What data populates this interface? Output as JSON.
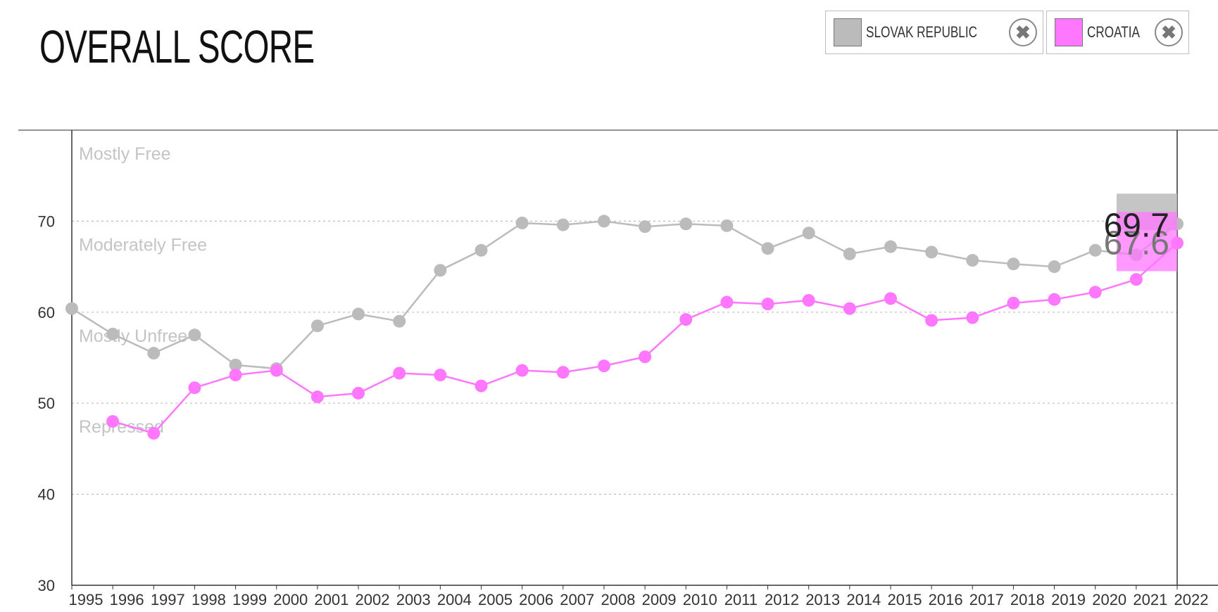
{
  "page": {
    "title": "OVERALL SCORE"
  },
  "legend": [
    {
      "label": "SLOVAK REPUBLIC",
      "color": "#bbbbbb",
      "swatch_icon": "square-swatch-icon",
      "close_icon": "close-icon",
      "close_glyph": "✖"
    },
    {
      "label": "CROATIA",
      "color": "#ff77ff",
      "swatch_icon": "square-swatch-icon",
      "close_icon": "close-icon",
      "close_glyph": "✖"
    }
  ],
  "chart_data": {
    "type": "line",
    "title": "OVERALL SCORE",
    "xlabel": "",
    "ylabel": "",
    "x": [
      1995,
      1996,
      1997,
      1998,
      1999,
      2000,
      2001,
      2002,
      2003,
      2004,
      2005,
      2006,
      2007,
      2008,
      2009,
      2010,
      2011,
      2012,
      2013,
      2014,
      2015,
      2016,
      2017,
      2018,
      2019,
      2020,
      2021,
      2022
    ],
    "x_tick_labels": [
      "1995",
      "1996",
      "1997",
      "1998",
      "1999",
      "2000",
      "2001",
      "2002",
      "2003",
      "2004",
      "2005",
      "2006",
      "2007",
      "2008",
      "2009",
      "2010",
      "2011",
      "2012",
      "2013",
      "2014",
      "2015",
      "2016",
      "2017",
      "2018",
      "2019",
      "2020",
      "2021",
      "2022"
    ],
    "y_ticks": [
      30,
      40,
      50,
      60,
      70
    ],
    "ylim": [
      30,
      80
    ],
    "grid": true,
    "legend_position": "top-right",
    "bands": [
      {
        "label": "Mostly Free",
        "value": 80
      },
      {
        "label": "Moderately Free",
        "value": 70
      },
      {
        "label": "Mostly Unfree",
        "value": 60
      },
      {
        "label": "Repressed",
        "value": 50
      }
    ],
    "series": [
      {
        "name": "SLOVAK REPUBLIC",
        "color": "#bbbbbb",
        "values": [
          60.4,
          57.6,
          55.5,
          57.5,
          54.2,
          53.8,
          58.5,
          59.8,
          59.0,
          64.6,
          66.8,
          69.8,
          69.6,
          70.0,
          69.4,
          69.7,
          69.5,
          67.0,
          68.7,
          66.4,
          67.2,
          66.6,
          65.7,
          65.3,
          65.0,
          66.8,
          66.3,
          69.7
        ]
      },
      {
        "name": "CROATIA",
        "color": "#ff77ff",
        "values": [
          null,
          48.0,
          46.7,
          51.7,
          53.1,
          53.6,
          50.7,
          51.1,
          53.3,
          53.1,
          51.9,
          53.6,
          53.4,
          54.1,
          55.1,
          59.2,
          61.1,
          60.9,
          61.3,
          60.4,
          61.5,
          59.1,
          59.4,
          61.0,
          61.4,
          62.2,
          63.6,
          67.6
        ]
      }
    ],
    "tooltip": {
      "year": 2022,
      "values": [
        "69.7",
        "67.6"
      ]
    }
  }
}
